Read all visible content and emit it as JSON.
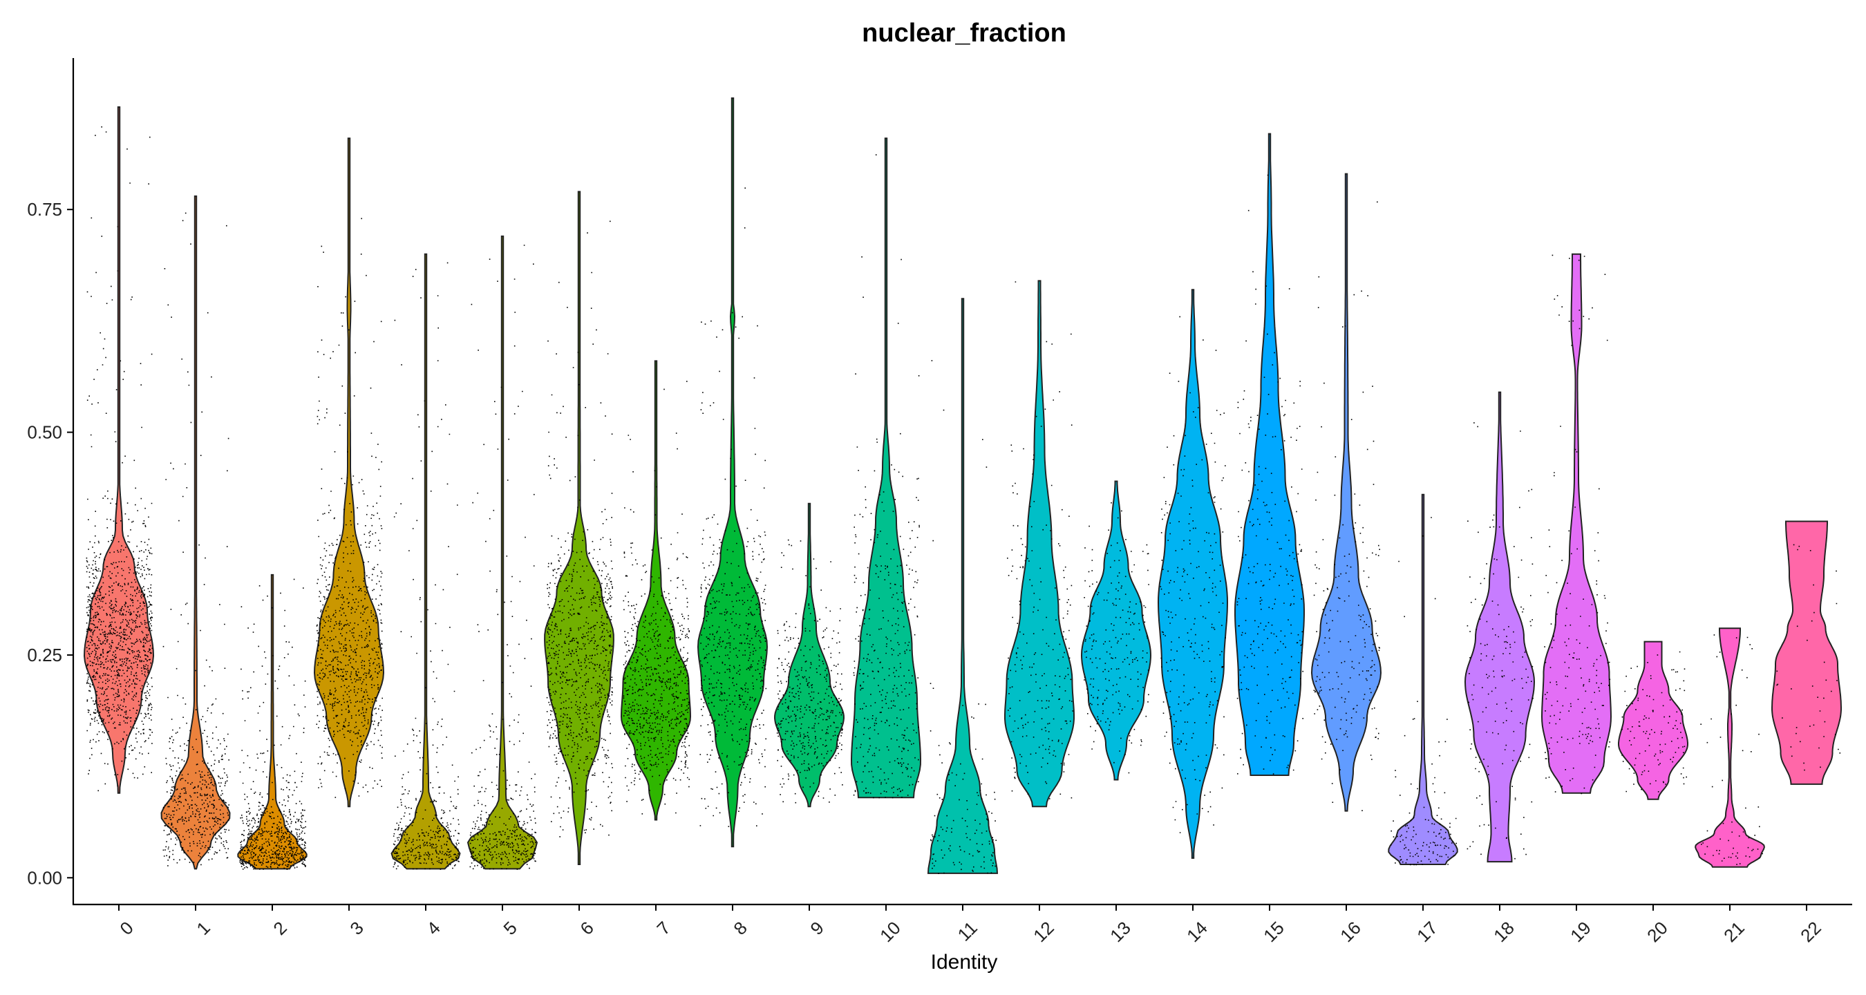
{
  "chart_data": {
    "type": "violin",
    "title": "nuclear_fraction",
    "xlabel": "Identity",
    "ylabel": "",
    "ylim": [
      -0.03,
      0.92
    ],
    "yticks": [
      0.0,
      0.25,
      0.5,
      0.75
    ],
    "ytick_labels": [
      "0.00",
      "0.25",
      "0.50",
      "0.75"
    ],
    "categories": [
      "0",
      "1",
      "2",
      "3",
      "4",
      "5",
      "6",
      "7",
      "8",
      "9",
      "10",
      "11",
      "12",
      "13",
      "14",
      "15",
      "16",
      "17",
      "18",
      "19",
      "20",
      "21",
      "22"
    ],
    "colors": [
      "#F8766D",
      "#EC823C",
      "#DD8D00",
      "#CA9700",
      "#B3A000",
      "#97A900",
      "#71B000",
      "#2FB600",
      "#00BA38",
      "#00BE6B",
      "#00C08E",
      "#00C1AC",
      "#00BFC7",
      "#00BBDE",
      "#00B3F2",
      "#00A8FF",
      "#619CFF",
      "#9F8CFF",
      "#C77CFF",
      "#E36EF6",
      "#F564E3",
      "#FF61C9",
      "#FF67A8"
    ],
    "series": [
      {
        "name": "0",
        "min": 0.095,
        "max": 0.865,
        "n": 1300,
        "profile": [
          [
            0.095,
            0.02
          ],
          [
            0.14,
            0.18
          ],
          [
            0.2,
            0.65
          ],
          [
            0.25,
            1.0
          ],
          [
            0.3,
            0.82
          ],
          [
            0.35,
            0.45
          ],
          [
            0.39,
            0.1
          ],
          [
            0.45,
            0.02
          ],
          [
            0.6,
            0.012
          ],
          [
            0.865,
            0.008
          ]
        ]
      },
      {
        "name": "1",
        "min": 0.01,
        "max": 0.765,
        "n": 900,
        "profile": [
          [
            0.01,
            0.02
          ],
          [
            0.04,
            0.45
          ],
          [
            0.07,
            1.0
          ],
          [
            0.1,
            0.6
          ],
          [
            0.14,
            0.2
          ],
          [
            0.2,
            0.04
          ],
          [
            0.4,
            0.015
          ],
          [
            0.765,
            0.006
          ]
        ]
      },
      {
        "name": "2",
        "min": 0.01,
        "max": 0.34,
        "n": 900,
        "profile": [
          [
            0.01,
            0.5
          ],
          [
            0.025,
            1.0
          ],
          [
            0.04,
            0.72
          ],
          [
            0.06,
            0.35
          ],
          [
            0.09,
            0.1
          ],
          [
            0.15,
            0.03
          ],
          [
            0.34,
            0.008
          ]
        ]
      },
      {
        "name": "3",
        "min": 0.08,
        "max": 0.83,
        "n": 900,
        "profile": [
          [
            0.08,
            0.02
          ],
          [
            0.12,
            0.2
          ],
          [
            0.18,
            0.65
          ],
          [
            0.23,
            1.0
          ],
          [
            0.28,
            0.85
          ],
          [
            0.34,
            0.45
          ],
          [
            0.4,
            0.15
          ],
          [
            0.46,
            0.04
          ],
          [
            0.6,
            0.025
          ],
          [
            0.64,
            0.05
          ],
          [
            0.7,
            0.015
          ],
          [
            0.83,
            0.008
          ]
        ]
      },
      {
        "name": "4",
        "min": 0.01,
        "max": 0.7,
        "n": 900,
        "profile": [
          [
            0.01,
            0.55
          ],
          [
            0.025,
            1.0
          ],
          [
            0.045,
            0.7
          ],
          [
            0.07,
            0.3
          ],
          [
            0.1,
            0.08
          ],
          [
            0.2,
            0.02
          ],
          [
            0.7,
            0.006
          ]
        ]
      },
      {
        "name": "5",
        "min": 0.01,
        "max": 0.72,
        "n": 900,
        "profile": [
          [
            0.01,
            0.5
          ],
          [
            0.025,
            0.9
          ],
          [
            0.04,
            1.0
          ],
          [
            0.06,
            0.45
          ],
          [
            0.09,
            0.1
          ],
          [
            0.2,
            0.02
          ],
          [
            0.72,
            0.006
          ]
        ]
      },
      {
        "name": "6",
        "min": 0.015,
        "max": 0.77,
        "n": 900,
        "profile": [
          [
            0.015,
            0.01
          ],
          [
            0.1,
            0.2
          ],
          [
            0.16,
            0.6
          ],
          [
            0.22,
            0.9
          ],
          [
            0.27,
            1.0
          ],
          [
            0.32,
            0.65
          ],
          [
            0.37,
            0.2
          ],
          [
            0.42,
            0.03
          ],
          [
            0.77,
            0.008
          ]
        ]
      },
      {
        "name": "7",
        "min": 0.065,
        "max": 0.58,
        "n": 800,
        "profile": [
          [
            0.065,
            0.02
          ],
          [
            0.1,
            0.2
          ],
          [
            0.14,
            0.6
          ],
          [
            0.18,
            1.0
          ],
          [
            0.22,
            0.95
          ],
          [
            0.27,
            0.55
          ],
          [
            0.33,
            0.15
          ],
          [
            0.4,
            0.03
          ],
          [
            0.58,
            0.01
          ]
        ]
      },
      {
        "name": "8",
        "min": 0.035,
        "max": 0.875,
        "n": 600,
        "profile": [
          [
            0.035,
            0.01
          ],
          [
            0.1,
            0.15
          ],
          [
            0.16,
            0.5
          ],
          [
            0.22,
            0.9
          ],
          [
            0.26,
            1.0
          ],
          [
            0.3,
            0.8
          ],
          [
            0.36,
            0.35
          ],
          [
            0.42,
            0.06
          ],
          [
            0.6,
            0.01
          ],
          [
            0.63,
            0.06
          ],
          [
            0.65,
            0.01
          ],
          [
            0.875,
            0.006
          ]
        ]
      },
      {
        "name": "9",
        "min": 0.08,
        "max": 0.42,
        "n": 450,
        "profile": [
          [
            0.08,
            0.03
          ],
          [
            0.11,
            0.3
          ],
          [
            0.15,
            0.8
          ],
          [
            0.18,
            1.0
          ],
          [
            0.22,
            0.6
          ],
          [
            0.28,
            0.2
          ],
          [
            0.33,
            0.05
          ],
          [
            0.42,
            0.012
          ]
        ]
      },
      {
        "name": "10",
        "min": 0.09,
        "max": 0.83,
        "n": 400,
        "profile": [
          [
            0.09,
            0.8
          ],
          [
            0.13,
            1.0
          ],
          [
            0.2,
            0.9
          ],
          [
            0.26,
            0.75
          ],
          [
            0.33,
            0.5
          ],
          [
            0.4,
            0.3
          ],
          [
            0.46,
            0.1
          ],
          [
            0.52,
            0.02
          ],
          [
            0.83,
            0.006
          ]
        ]
      },
      {
        "name": "11",
        "min": 0.005,
        "max": 0.65,
        "n": 130,
        "profile": [
          [
            0.005,
            1.0
          ],
          [
            0.03,
            0.92
          ],
          [
            0.06,
            0.75
          ],
          [
            0.1,
            0.5
          ],
          [
            0.15,
            0.2
          ],
          [
            0.22,
            0.04
          ],
          [
            0.3,
            0.015
          ],
          [
            0.65,
            0.006
          ]
        ]
      },
      {
        "name": "12",
        "min": 0.08,
        "max": 0.67,
        "n": 230,
        "profile": [
          [
            0.08,
            0.2
          ],
          [
            0.12,
            0.65
          ],
          [
            0.18,
            1.0
          ],
          [
            0.22,
            0.95
          ],
          [
            0.3,
            0.55
          ],
          [
            0.38,
            0.35
          ],
          [
            0.48,
            0.15
          ],
          [
            0.6,
            0.04
          ],
          [
            0.67,
            0.03
          ]
        ]
      },
      {
        "name": "13",
        "min": 0.11,
        "max": 0.445,
        "n": 230,
        "profile": [
          [
            0.11,
            0.05
          ],
          [
            0.15,
            0.3
          ],
          [
            0.2,
            0.8
          ],
          [
            0.25,
            1.0
          ],
          [
            0.3,
            0.75
          ],
          [
            0.35,
            0.35
          ],
          [
            0.4,
            0.12
          ],
          [
            0.445,
            0.03
          ]
        ]
      },
      {
        "name": "14",
        "min": 0.022,
        "max": 0.66,
        "n": 260,
        "profile": [
          [
            0.022,
            0.02
          ],
          [
            0.08,
            0.2
          ],
          [
            0.16,
            0.6
          ],
          [
            0.24,
            0.9
          ],
          [
            0.31,
            1.0
          ],
          [
            0.38,
            0.8
          ],
          [
            0.45,
            0.45
          ],
          [
            0.52,
            0.2
          ],
          [
            0.6,
            0.06
          ],
          [
            0.66,
            0.02
          ]
        ]
      },
      {
        "name": "15",
        "min": 0.115,
        "max": 0.835,
        "n": 260,
        "profile": [
          [
            0.115,
            0.55
          ],
          [
            0.15,
            0.7
          ],
          [
            0.22,
            0.9
          ],
          [
            0.3,
            1.0
          ],
          [
            0.38,
            0.75
          ],
          [
            0.45,
            0.45
          ],
          [
            0.55,
            0.25
          ],
          [
            0.65,
            0.12
          ],
          [
            0.75,
            0.05
          ],
          [
            0.835,
            0.015
          ]
        ]
      },
      {
        "name": "16",
        "min": 0.075,
        "max": 0.79,
        "n": 200,
        "profile": [
          [
            0.075,
            0.03
          ],
          [
            0.12,
            0.2
          ],
          [
            0.18,
            0.6
          ],
          [
            0.23,
            1.0
          ],
          [
            0.28,
            0.75
          ],
          [
            0.34,
            0.35
          ],
          [
            0.42,
            0.15
          ],
          [
            0.5,
            0.05
          ],
          [
            0.79,
            0.006
          ]
        ]
      },
      {
        "name": "17",
        "min": 0.015,
        "max": 0.43,
        "n": 130,
        "profile": [
          [
            0.015,
            0.65
          ],
          [
            0.03,
            1.0
          ],
          [
            0.05,
            0.75
          ],
          [
            0.07,
            0.25
          ],
          [
            0.1,
            0.1
          ],
          [
            0.14,
            0.04
          ],
          [
            0.2,
            0.02
          ],
          [
            0.43,
            0.008
          ]
        ]
      },
      {
        "name": "18",
        "min": 0.018,
        "max": 0.545,
        "n": 160,
        "profile": [
          [
            0.018,
            0.35
          ],
          [
            0.05,
            0.25
          ],
          [
            0.1,
            0.3
          ],
          [
            0.16,
            0.75
          ],
          [
            0.22,
            1.0
          ],
          [
            0.27,
            0.7
          ],
          [
            0.33,
            0.3
          ],
          [
            0.4,
            0.1
          ],
          [
            0.545,
            0.015
          ]
        ]
      },
      {
        "name": "19",
        "min": 0.095,
        "max": 0.7,
        "n": 180,
        "profile": [
          [
            0.095,
            0.4
          ],
          [
            0.13,
            0.8
          ],
          [
            0.18,
            1.0
          ],
          [
            0.23,
            0.95
          ],
          [
            0.29,
            0.6
          ],
          [
            0.36,
            0.2
          ],
          [
            0.45,
            0.06
          ],
          [
            0.56,
            0.03
          ],
          [
            0.62,
            0.15
          ],
          [
            0.7,
            0.12
          ]
        ]
      },
      {
        "name": "20",
        "min": 0.088,
        "max": 0.265,
        "n": 120,
        "profile": [
          [
            0.088,
            0.15
          ],
          [
            0.11,
            0.45
          ],
          [
            0.15,
            1.0
          ],
          [
            0.18,
            0.85
          ],
          [
            0.21,
            0.45
          ],
          [
            0.24,
            0.25
          ],
          [
            0.265,
            0.25
          ]
        ]
      },
      {
        "name": "21",
        "min": 0.012,
        "max": 0.28,
        "n": 60,
        "profile": [
          [
            0.012,
            0.5
          ],
          [
            0.025,
            0.9
          ],
          [
            0.035,
            1.0
          ],
          [
            0.05,
            0.45
          ],
          [
            0.07,
            0.12
          ],
          [
            0.09,
            0.05
          ],
          [
            0.12,
            0.02
          ],
          [
            0.17,
            0.06
          ],
          [
            0.2,
            0.015
          ],
          [
            0.28,
            0.3
          ]
        ]
      },
      {
        "name": "22",
        "min": 0.105,
        "max": 0.4,
        "n": 40,
        "profile": [
          [
            0.105,
            0.45
          ],
          [
            0.14,
            0.75
          ],
          [
            0.19,
            1.0
          ],
          [
            0.24,
            0.9
          ],
          [
            0.28,
            0.55
          ],
          [
            0.3,
            0.4
          ],
          [
            0.34,
            0.5
          ],
          [
            0.4,
            0.6
          ]
        ]
      }
    ]
  }
}
